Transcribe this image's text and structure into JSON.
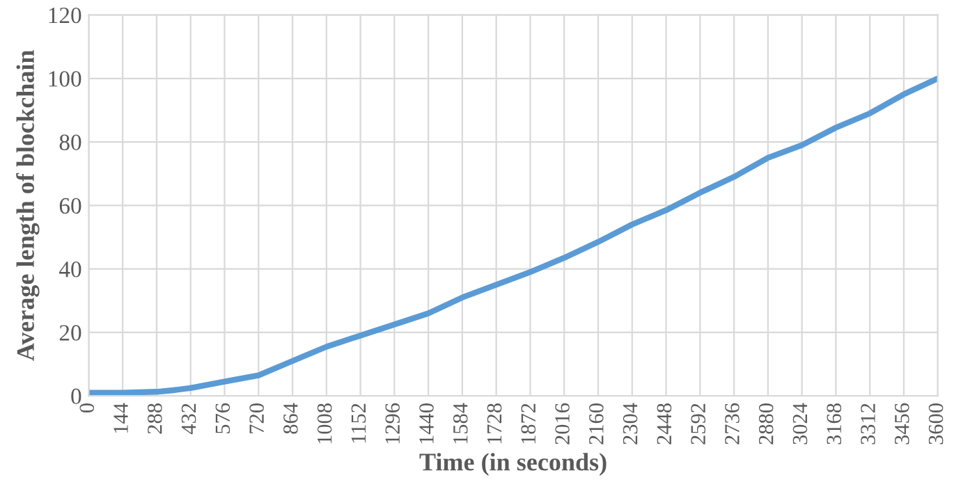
{
  "chart_data": {
    "type": "line",
    "xlabel": "Time (in seconds)",
    "ylabel": "Average length of blockchain",
    "x": [
      0,
      144,
      288,
      360,
      432,
      576,
      720,
      864,
      1008,
      1152,
      1296,
      1440,
      1584,
      1728,
      1872,
      2016,
      2160,
      2304,
      2448,
      2592,
      2736,
      2880,
      3024,
      3168,
      3312,
      3456,
      3600
    ],
    "series": [
      {
        "color": "#5b9bd5",
        "values": [
          1,
          1,
          1.3,
          1.8,
          2.5,
          4.5,
          6.5,
          11,
          15.5,
          19,
          22.5,
          26,
          31,
          35,
          39,
          43.5,
          48.5,
          54,
          58.5,
          64,
          69,
          75,
          79,
          84.5,
          89,
          95,
          100
        ]
      }
    ],
    "xlim": [
      0,
      3600
    ],
    "xticks": [
      0,
      144,
      288,
      432,
      576,
      720,
      864,
      1008,
      1152,
      1296,
      1440,
      1584,
      1728,
      1872,
      2016,
      2160,
      2304,
      2448,
      2592,
      2736,
      2880,
      3024,
      3168,
      3312,
      3456,
      3600
    ],
    "ylim": [
      0,
      120
    ],
    "yticks": [
      0,
      20,
      40,
      60,
      80,
      100,
      120
    ],
    "grid": true,
    "legend": false,
    "marker": "none",
    "line_style": "solid"
  }
}
